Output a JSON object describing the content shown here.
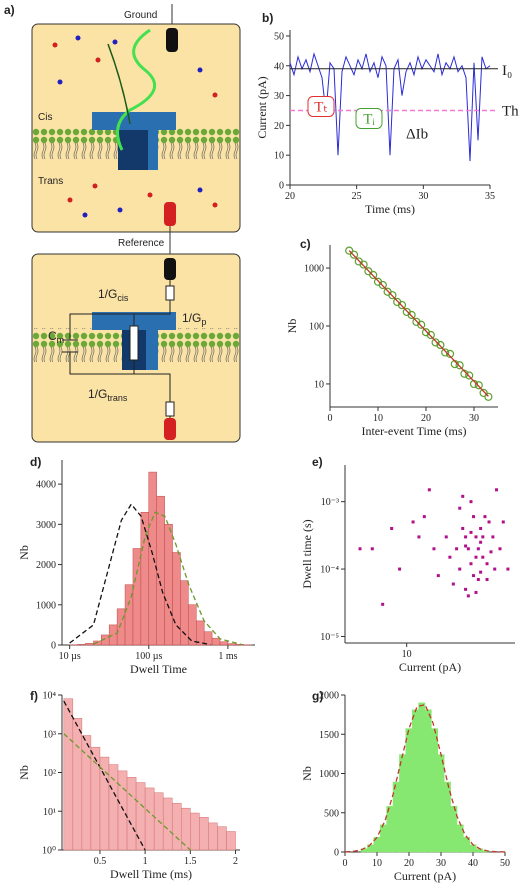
{
  "diagram": {
    "label": "a)",
    "top": {
      "ground": "Ground",
      "cis": "Cis",
      "trans": "Trans",
      "reference": "Reference"
    },
    "circuit": {
      "g_cis": {
        "main": "1/G",
        "sub": "cis"
      },
      "g_p": {
        "main": "1/G",
        "sub": "p"
      },
      "c_m": {
        "main": "C",
        "sub": "m"
      },
      "g_trans": {
        "main": "1/G",
        "sub": "trans"
      }
    }
  },
  "chart_data": [
    {
      "type": "line",
      "label": "b)",
      "xlabel": "Time (ms)",
      "ylabel": "Current (pA)",
      "color": "#2b2bd8",
      "x": [
        20.0,
        20.3,
        20.6,
        20.9,
        21.2,
        21.5,
        21.8,
        22.1,
        22.4,
        22.7,
        23.0,
        23.3,
        23.6,
        23.9,
        24.2,
        24.5,
        24.8,
        25.1,
        25.4,
        25.7,
        26.0,
        26.3,
        26.6,
        26.9,
        27.2,
        27.5,
        27.8,
        28.1,
        28.4,
        28.7,
        29.0,
        29.3,
        29.6,
        29.9,
        30.2,
        30.5,
        30.8,
        31.1,
        31.4,
        31.7,
        32.0,
        32.3,
        32.6,
        32.9,
        33.2,
        33.5,
        33.8,
        34.1,
        34.4,
        34.7,
        35.0
      ],
      "values": [
        41,
        37,
        43,
        39,
        42,
        38,
        44,
        40,
        36,
        24,
        41,
        39,
        10,
        38,
        43,
        40,
        37,
        42,
        39,
        44,
        38,
        41,
        36,
        43,
        40,
        10,
        39,
        42,
        30,
        38,
        41,
        37,
        43,
        39,
        42,
        40,
        38,
        44,
        37,
        41,
        39,
        43,
        38,
        40,
        36,
        8,
        41,
        15,
        43,
        39,
        40
      ],
      "baseline": 39,
      "threshold": 25,
      "threshold_color": "#f07ad8",
      "annotations": {
        "baseline_label": "I₀",
        "threshold_label": "Th",
        "t_t": "Tₜ",
        "t_i": "Tᵢ",
        "delta": "ΔIb"
      },
      "xlim": [
        20,
        35
      ],
      "xticks": [
        20,
        25,
        30,
        35
      ],
      "ylim": [
        0,
        52
      ],
      "yticks": [
        0,
        10,
        20,
        30,
        40,
        50
      ]
    },
    {
      "type": "scatter",
      "label": "c)",
      "xlabel": "Inter-event Time (ms)",
      "ylabel": "Nb",
      "color": "#5aa02c",
      "marker": "circle-open",
      "x": [
        4,
        5,
        6,
        7,
        8,
        9,
        10,
        11,
        12,
        13,
        14,
        15,
        16,
        17,
        18,
        19,
        20,
        21,
        22,
        23,
        24,
        25,
        26,
        27,
        28,
        29,
        30,
        31,
        32,
        33
      ],
      "values": [
        2000,
        1700,
        1300,
        1150,
        880,
        760,
        580,
        510,
        390,
        340,
        260,
        230,
        175,
        155,
        118,
        105,
        78,
        70,
        52,
        47,
        35,
        33,
        22,
        21,
        15,
        14,
        10,
        9.5,
        7,
        6
      ],
      "fits": [
        {
          "color": "#c0392b",
          "dash": false,
          "x": [
            4,
            33
          ],
          "values": [
            2000,
            6.1
          ]
        }
      ],
      "ylog": true,
      "xlim": [
        0,
        35
      ],
      "xticks": [
        0,
        10,
        20,
        30
      ],
      "ylim": [
        4,
        2500
      ],
      "yticks": [
        10,
        100,
        1000
      ]
    },
    {
      "type": "histogram",
      "label": "d)",
      "xlabel": "Dwell Time",
      "ylabel": "Nb",
      "color": "#ee8a8a",
      "edge": "#c04848",
      "bins": [
        10,
        12.6,
        15.8,
        20,
        25.1,
        31.6,
        39.8,
        50.1,
        63.1,
        79.4,
        100,
        125.9,
        158.5,
        199.5,
        251.2,
        316.2,
        398.1,
        501.2,
        631,
        794.3,
        1000,
        1258.9,
        1584.9,
        1995.3
      ],
      "values": [
        5,
        15,
        40,
        100,
        250,
        500,
        900,
        1500,
        2400,
        3300,
        4300,
        3700,
        3000,
        2300,
        1600,
        1000,
        600,
        330,
        170,
        80,
        35,
        15,
        5
      ],
      "fits": [
        {
          "color": "#111111",
          "dash": true,
          "x": [
            10,
            20,
            30,
            45,
            60,
            80,
            110,
            150,
            220,
            350,
            600
          ],
          "values": [
            50,
            500,
            1800,
            3100,
            3500,
            3200,
            2300,
            1300,
            500,
            100,
            10
          ]
        },
        {
          "color": "#6a9a2a",
          "dash": true,
          "x": [
            20,
            40,
            60,
            90,
            120,
            160,
            220,
            320,
            500,
            800,
            1500
          ],
          "values": [
            20,
            300,
            1200,
            2700,
            3300,
            3200,
            2500,
            1500,
            600,
            150,
            10
          ]
        }
      ],
      "xlog": true,
      "xlim": [
        8,
        2200
      ],
      "xticks": [
        {
          "value": 10,
          "label": "10 µs"
        },
        {
          "value": 100,
          "label": "100 µs"
        },
        {
          "value": 1000,
          "label": "1 ms"
        }
      ],
      "ylim": [
        0,
        4600
      ],
      "yticks": [
        0,
        1000,
        2000,
        3000,
        4000
      ]
    },
    {
      "type": "scatter",
      "label": "e)",
      "xlabel": "Current (pA)",
      "ylabel": "Dwell time (s)",
      "color": "#b0108a",
      "marker": "square",
      "x": [
        22,
        25,
        28,
        31,
        24,
        27,
        30,
        33,
        20,
        23,
        26,
        29,
        35,
        21,
        32,
        26,
        28,
        24,
        30,
        34,
        19,
        37,
        23,
        27,
        29,
        25,
        31,
        22,
        36,
        40,
        18,
        33,
        26,
        28,
        24,
        30,
        15,
        12,
        8,
        6,
        9,
        11,
        14,
        7,
        5,
        16,
        13,
        42,
        38,
        45
      ],
      "values": [
        0.0001,
        0.0002,
        0.00015,
        0.0003,
        5e-05,
        8e-05,
        0.00025,
        0.00012,
        6e-05,
        0.0004,
        0.00035,
        7e-05,
        0.00018,
        0.0002,
        0.0006,
        0.001,
        4.5e-05,
        0.0003,
        9e-05,
        0.0005,
        0.00015,
        0.0001,
        0.0012,
        0.0006,
        0.0002,
        4e-05,
        0.00015,
        0.0008,
        0.0003,
        0.0002,
        0.0003,
        7e-05,
        0.00012,
        0.0003,
        0.00022,
        0.0004,
        0.0002,
        0.0003,
        0.0004,
        0.0002,
        0.0001,
        0.0005,
        0.0015,
        3e-05,
        0.0002,
        8e-05,
        0.0006,
        0.0005,
        0.0015,
        0.0001
      ],
      "xlog": true,
      "ylog": true,
      "xlim": [
        4,
        50
      ],
      "xticks": [
        10
      ],
      "ylim": [
        8e-06,
        0.0035
      ],
      "yticks": [
        {
          "value": 1e-05,
          "label": "10⁻⁵"
        },
        {
          "value": 0.0001,
          "label": "10⁻⁴"
        },
        {
          "value": 0.001,
          "label": "10⁻³"
        }
      ]
    },
    {
      "type": "histogram",
      "label": "f)",
      "xlabel": "Dwell Time (ms)",
      "ylabel": "Nb",
      "color": "#f4b0b0",
      "edge": "#d07070",
      "bins": [
        0.1,
        0.2,
        0.3,
        0.4,
        0.5,
        0.6,
        0.7,
        0.8,
        0.9,
        1.0,
        1.1,
        1.2,
        1.3,
        1.4,
        1.5,
        1.6,
        1.7,
        1.8,
        1.9,
        2.0
      ],
      "values": [
        8000,
        2500,
        900,
        450,
        250,
        160,
        110,
        75,
        55,
        40,
        30,
        22,
        16,
        12,
        9,
        7,
        5,
        4,
        3
      ],
      "fits": [
        {
          "color": "#111111",
          "dash": true,
          "x": [
            0.1,
            1.0
          ],
          "values": [
            7000,
            1
          ]
        },
        {
          "color": "#6a9a2a",
          "dash": true,
          "x": [
            0.1,
            1.5
          ],
          "values": [
            1000,
            1
          ]
        }
      ],
      "ylog": true,
      "xlim": [
        0.08,
        2.05
      ],
      "xticks": [
        0.5,
        1,
        1.5,
        2
      ],
      "ylim": [
        1,
        10000
      ],
      "yticks": [
        {
          "value": 1,
          "label": "10⁰"
        },
        {
          "value": 10,
          "label": "10¹"
        },
        {
          "value": 100,
          "label": "10²"
        },
        {
          "value": 1000,
          "label": "10³"
        },
        {
          "value": 10000,
          "label": "10⁴"
        }
      ]
    },
    {
      "type": "histogram",
      "label": "g)",
      "xlabel": "Current (pA)",
      "ylabel": "Nb",
      "color": "#86e870",
      "edge": "#86e870",
      "bins": [
        5,
        7,
        9,
        11,
        13,
        15,
        17,
        19,
        21,
        23,
        25,
        27,
        29,
        31,
        33,
        35,
        37,
        39,
        41,
        43,
        45
      ],
      "values": [
        41,
        92,
        187,
        346,
        582,
        891,
        1241,
        1572,
        1812,
        1900,
        1812,
        1572,
        1241,
        891,
        582,
        346,
        187,
        92,
        41,
        17
      ],
      "fits": [
        {
          "color": "#c0392b",
          "dash": true,
          "x": [
            0,
            2.5,
            5,
            7.5,
            10,
            12.5,
            15,
            17.5,
            20,
            22.5,
            25,
            27.5,
            30,
            32.5,
            35,
            37.5,
            40,
            42.5,
            45,
            47.5,
            50
          ],
          "values": [
            2,
            8,
            27,
            76,
            187,
            397,
            728,
            1152,
            1572,
            1850,
            1878,
            1644,
            1241,
            808,
            454,
            220,
            92,
            33,
            10,
            3,
            1
          ]
        }
      ],
      "xlim": [
        0,
        50
      ],
      "xticks": [
        0,
        10,
        20,
        30,
        40,
        50
      ],
      "ylim": [
        0,
        2000
      ],
      "yticks": [
        0,
        500,
        1000,
        1500,
        2000
      ]
    }
  ]
}
